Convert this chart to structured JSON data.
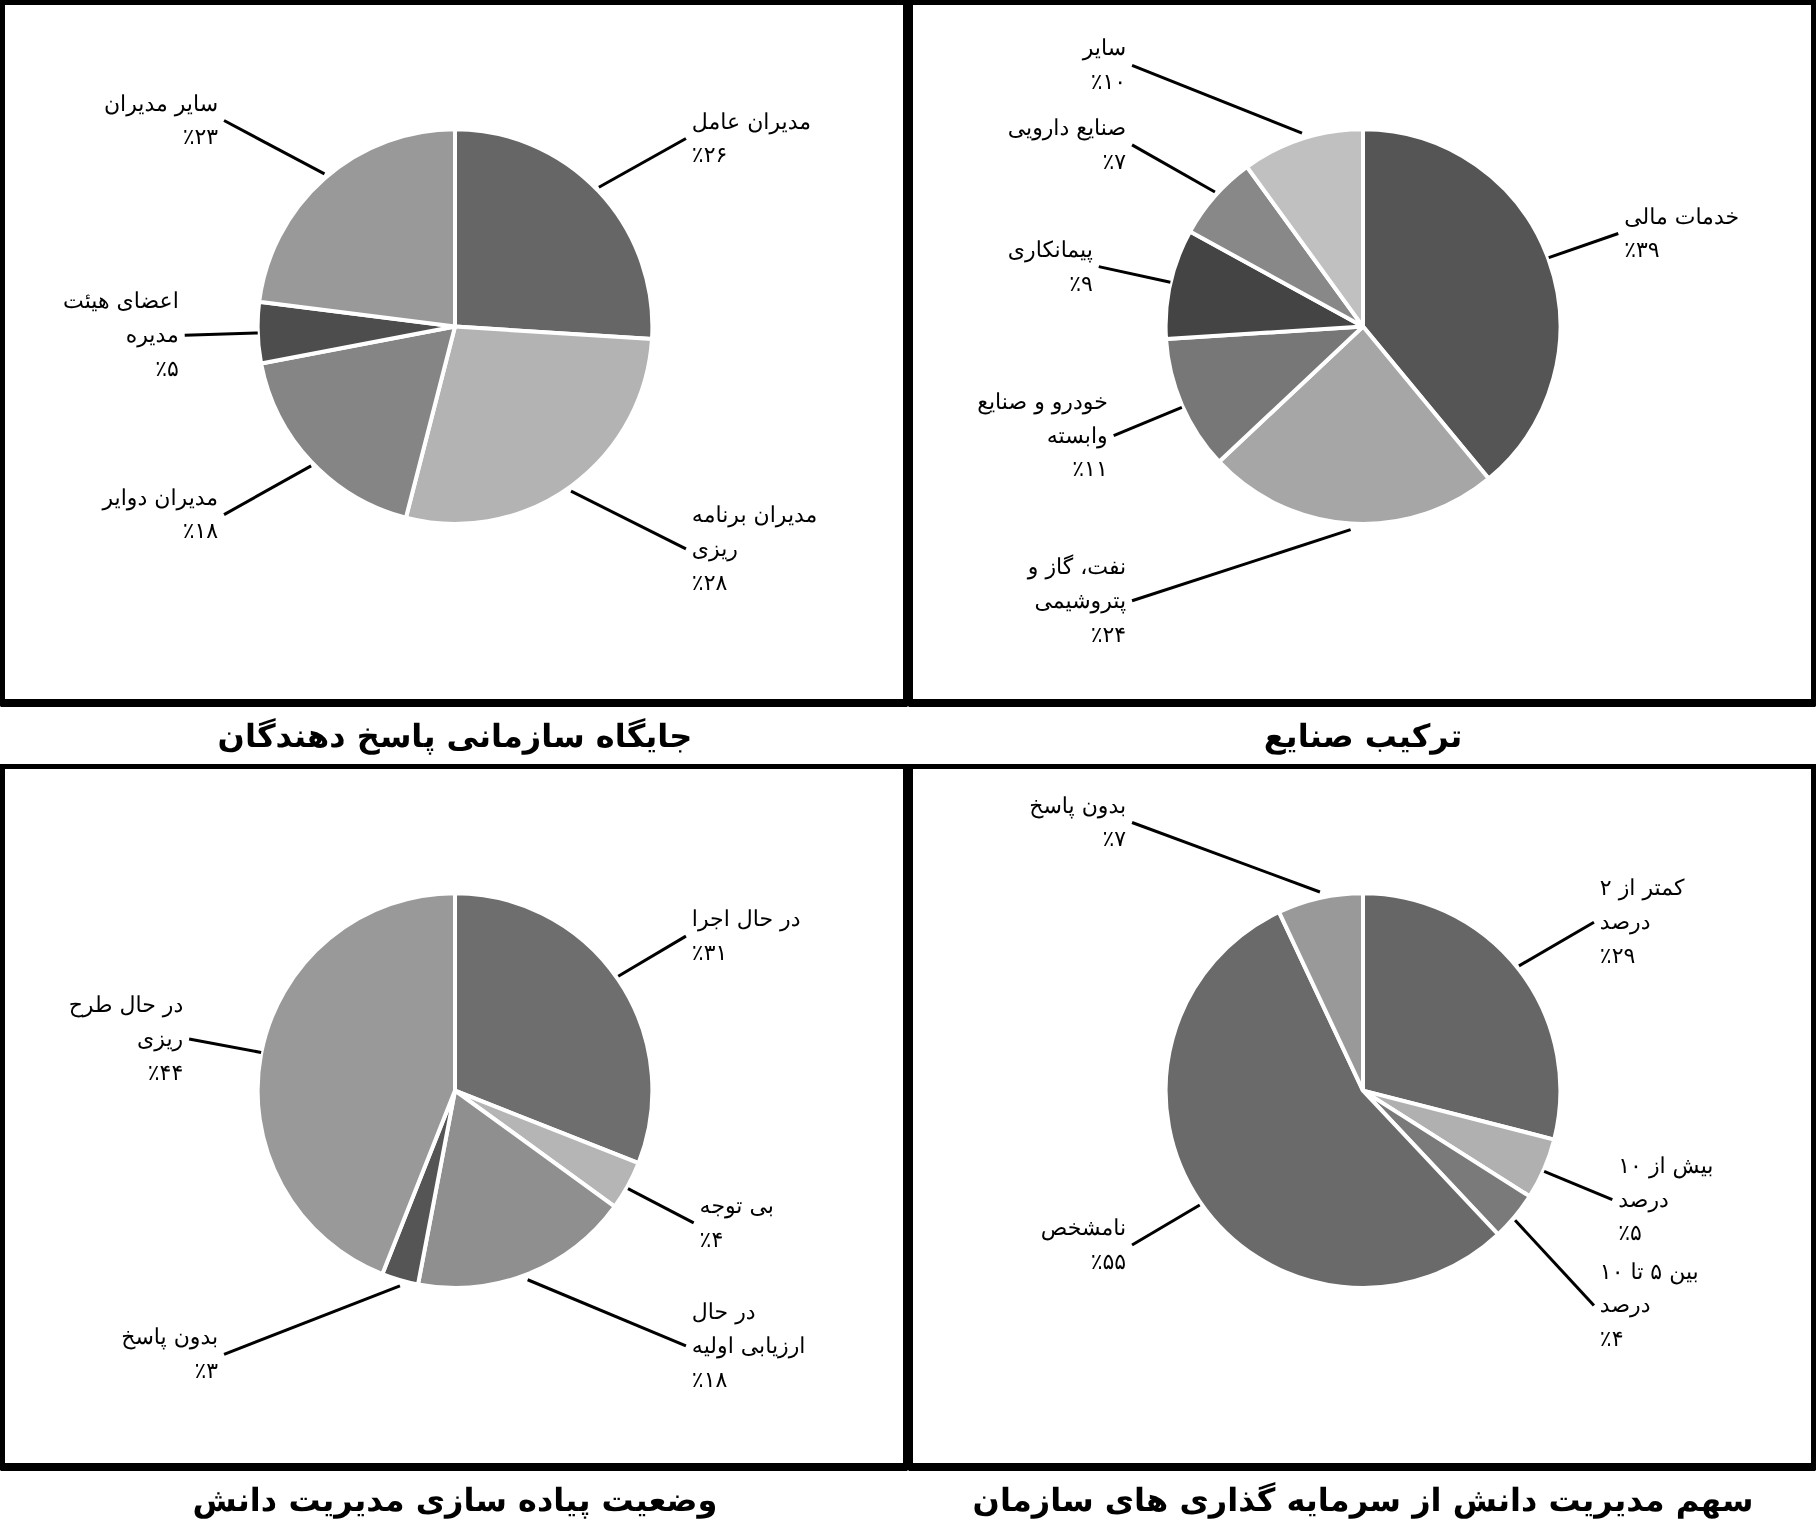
{
  "chart_data": [
    {
      "type": "pie",
      "title": "جایگاه سازمانی پاسخ دهندگان",
      "categories": [
        "مدیران عامل",
        "مدیران برنامه ریزی",
        "مدیران دوایر",
        "اعضای هیئت مدیره",
        "سایر مدیران"
      ],
      "values": [
        26,
        28,
        18,
        5,
        23
      ],
      "colors": [
        "#666666",
        "#b3b3b3",
        "#858585",
        "#4d4d4d",
        "#999999"
      ],
      "value_labels": [
        "٪۲۶",
        "٪۲۸",
        "٪۱۸",
        "٪۵",
        "٪۲۳"
      ]
    },
    {
      "type": "pie",
      "title": "ترکیب صنایع",
      "categories": [
        "خدمات مالی",
        "نفت، گاز و پتروشیمی",
        "خودرو و صنایع وابسته",
        "پیمانکاری",
        "صنایع دارویی",
        "سایر"
      ],
      "values": [
        39,
        24,
        11,
        9,
        7,
        10
      ],
      "colors": [
        "#555555",
        "#a6a6a6",
        "#777777",
        "#444444",
        "#888888",
        "#c0c0c0"
      ],
      "value_labels": [
        "٪۳۹",
        "٪۲۴",
        "٪۱۱",
        "٪۹",
        "٪۷",
        "٪۱۰"
      ]
    },
    {
      "type": "pie",
      "title": "وضعیت پیاده سازی مدیریت دانش",
      "categories": [
        "در حال اجرا",
        "بی توجه",
        "در حال ارزیابی اولیه",
        "بدون پاسخ",
        "در حال طرح ریزی"
      ],
      "values": [
        31,
        4,
        18,
        3,
        44
      ],
      "colors": [
        "#6e6e6e",
        "#b5b5b5",
        "#8f8f8f",
        "#555555",
        "#999999"
      ],
      "value_labels": [
        "٪۳۱",
        "٪۴",
        "٪۱۸",
        "٪۳",
        "٪۴۴"
      ]
    },
    {
      "type": "pie",
      "title": "سهم مدیریت دانش از سرمایه گذاری های سازمان",
      "categories": [
        "کمتر از ۲ درصد",
        "بیش از ۱۰ درصد",
        "بین ۵ تا ۱۰ درصد",
        "نامشخص",
        "بدون پاسخ"
      ],
      "values": [
        29,
        5,
        4,
        55,
        7
      ],
      "colors": [
        "#666666",
        "#b0b0b0",
        "#7a7a7a",
        "#6a6a6a",
        "#999999"
      ],
      "value_labels": [
        "٪۲۹",
        "٪۵",
        "٪۴",
        "٪۵۵",
        "٪۷"
      ]
    }
  ]
}
